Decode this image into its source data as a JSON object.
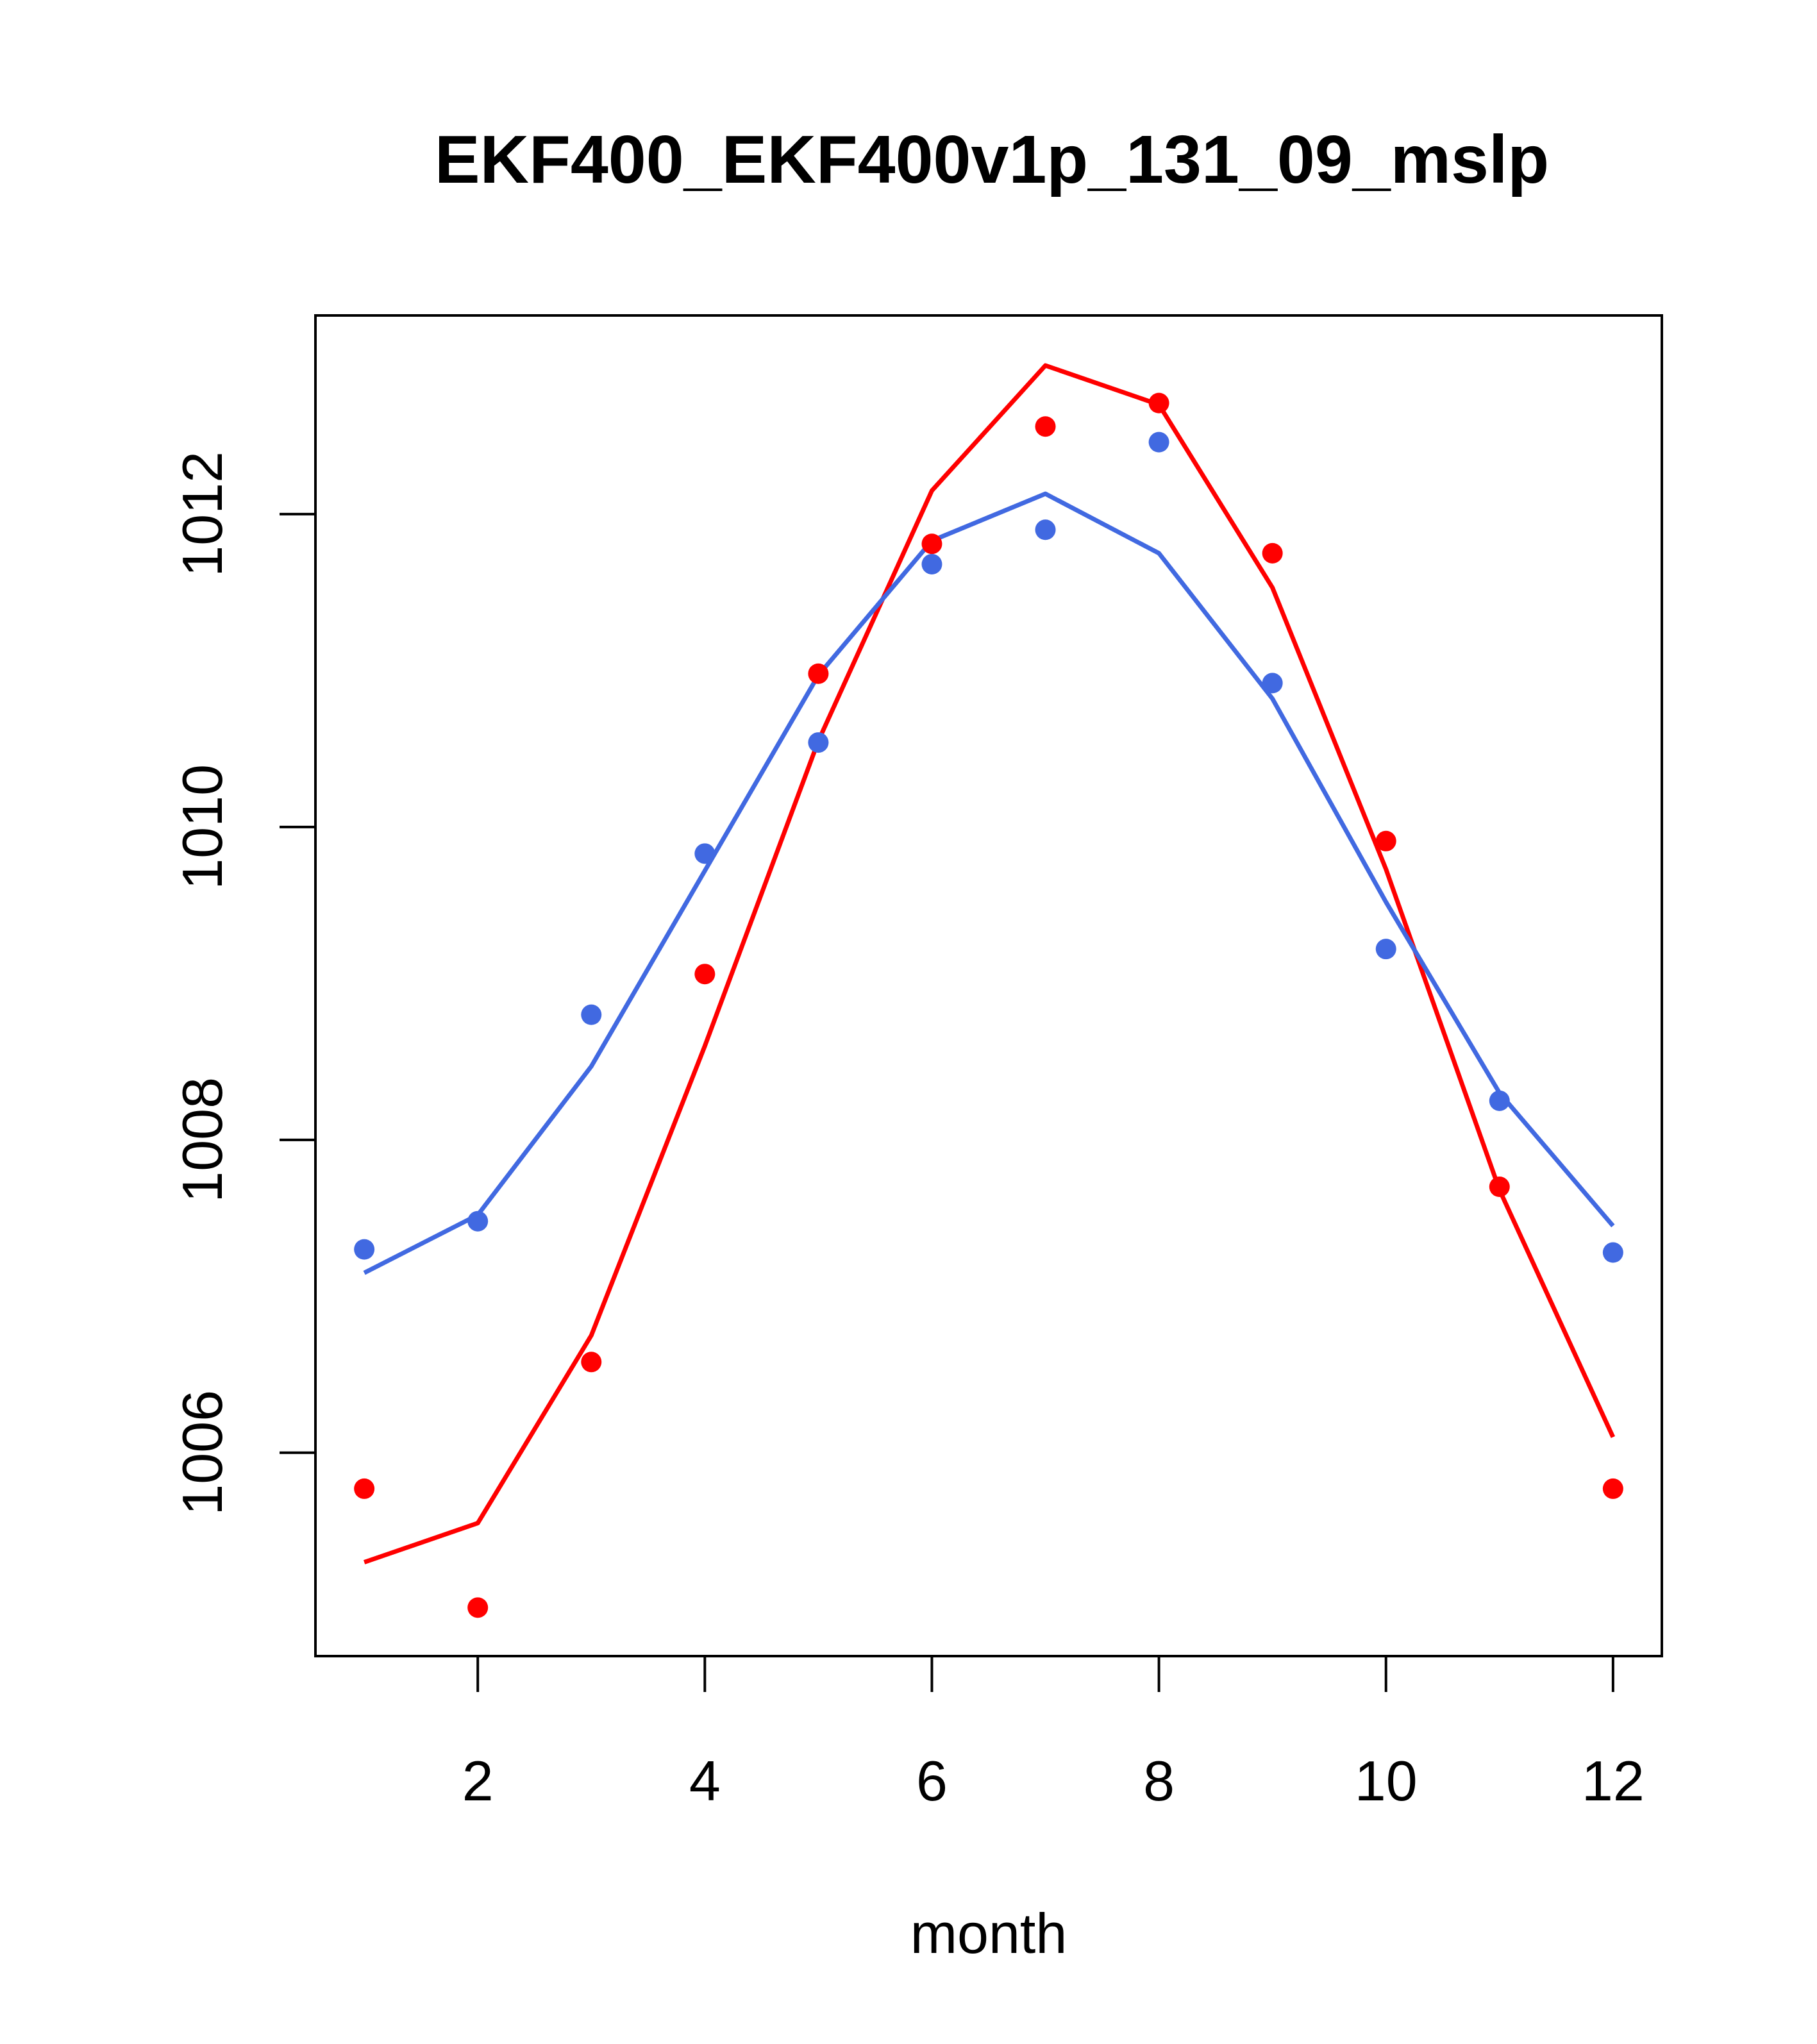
{
  "chart_data": {
    "type": "line",
    "title": "EKF400_EKF400v1p_131_09_mslp",
    "xlabel": "month",
    "ylabel": "",
    "xlim": [
      0.57,
      12.43
    ],
    "ylim": [
      1004.7,
      1013.27
    ],
    "x": [
      1,
      2,
      3,
      4,
      5,
      6,
      7,
      8,
      9,
      10,
      11,
      12
    ],
    "x_ticks": [
      2,
      4,
      6,
      8,
      10,
      12
    ],
    "x_tick_labels": [
      "2",
      "4",
      "6",
      "8",
      "10",
      "12"
    ],
    "y_ticks": [
      1006,
      1008,
      1010,
      1012
    ],
    "y_tick_labels": [
      "1006",
      "1008",
      "1010",
      "1012"
    ],
    "grid": false,
    "series": [
      {
        "name": "red",
        "color": "#ff0000",
        "points": [
          1005.77,
          1005.01,
          1006.58,
          1009.06,
          1010.98,
          1011.81,
          1012.56,
          1012.71,
          1011.75,
          1009.91,
          1007.7,
          1005.77
        ],
        "line": [
          1005.3,
          1005.55,
          1006.75,
          1008.6,
          1010.55,
          1012.15,
          1012.95,
          1012.7,
          1011.53,
          1009.73,
          1007.68,
          1006.1
        ]
      },
      {
        "name": "blue",
        "color": "#4169e1",
        "points": [
          1007.3,
          1007.48,
          1008.8,
          1009.83,
          1010.54,
          1011.68,
          1011.9,
          1012.46,
          1010.92,
          1009.22,
          1008.25,
          1007.28
        ],
        "line": [
          1007.15,
          1007.52,
          1008.47,
          1009.72,
          1010.97,
          1011.83,
          1012.13,
          1011.75,
          1010.82,
          1009.52,
          1008.3,
          1007.45
        ]
      }
    ]
  }
}
